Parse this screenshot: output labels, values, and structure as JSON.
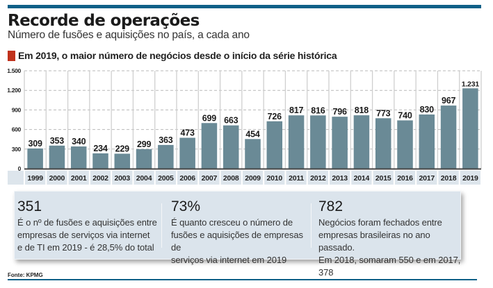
{
  "header": {
    "title": "Recorde de operações",
    "subtitle": "Número de fusões e aquisições no país, a cada ano",
    "highlight": "Em 2019, o maior número de negócios desde o início da série histórica"
  },
  "colors": {
    "rule": "#0f6088",
    "marker": "#c0321c",
    "bar": "#6a8a96",
    "panel": "#dbe4ec",
    "year_cell": "#dde5ec"
  },
  "chart_data": {
    "type": "bar",
    "title": "Recorde de operações",
    "subtitle": "Número de fusões e aquisições no país, a cada ano",
    "xlabel": "",
    "ylabel": "",
    "categories": [
      "1999",
      "2000",
      "2001",
      "2002",
      "2003",
      "2004",
      "2005",
      "2006",
      "2007",
      "2008",
      "2009",
      "2010",
      "2011",
      "2012",
      "2013",
      "2014",
      "2015",
      "2016",
      "2017",
      "2018",
      "2019"
    ],
    "values": [
      309,
      353,
      340,
      234,
      229,
      299,
      363,
      473,
      699,
      663,
      454,
      726,
      817,
      816,
      796,
      818,
      773,
      740,
      830,
      967,
      1231
    ],
    "value_labels": [
      "309",
      "353",
      "340",
      "234",
      "229",
      "299",
      "363",
      "473",
      "699",
      "663",
      "454",
      "726",
      "817",
      "816",
      "796",
      "818",
      "773",
      "740",
      "830",
      "967",
      "1.231"
    ],
    "ylim": [
      0,
      1500
    ],
    "yticks": [
      0,
      300,
      600,
      900,
      1200,
      1500
    ],
    "ytick_labels": [
      "0",
      "300",
      "600",
      "900",
      "1.200",
      "1.500"
    ],
    "grid": true,
    "legend": "none"
  },
  "stats": [
    {
      "number": "351",
      "lines": [
        "É o nº de fusões e aquisições entre",
        "empresas de serviços via internet",
        "e de TI em 2019 - é 28,5% do total"
      ]
    },
    {
      "number": "73%",
      "lines": [
        "É quanto cresceu o número de",
        "fusões e aquisições de empresas de",
        "serviços via internet em 2019"
      ]
    },
    {
      "number": "782",
      "lines": [
        "Negócios foram fechados entre",
        "empresas brasileiras no ano passado.",
        "Em 2018, somaram 550 e em 2017, 378"
      ]
    }
  ],
  "footer": {
    "source": "Fonte: KPMG"
  }
}
